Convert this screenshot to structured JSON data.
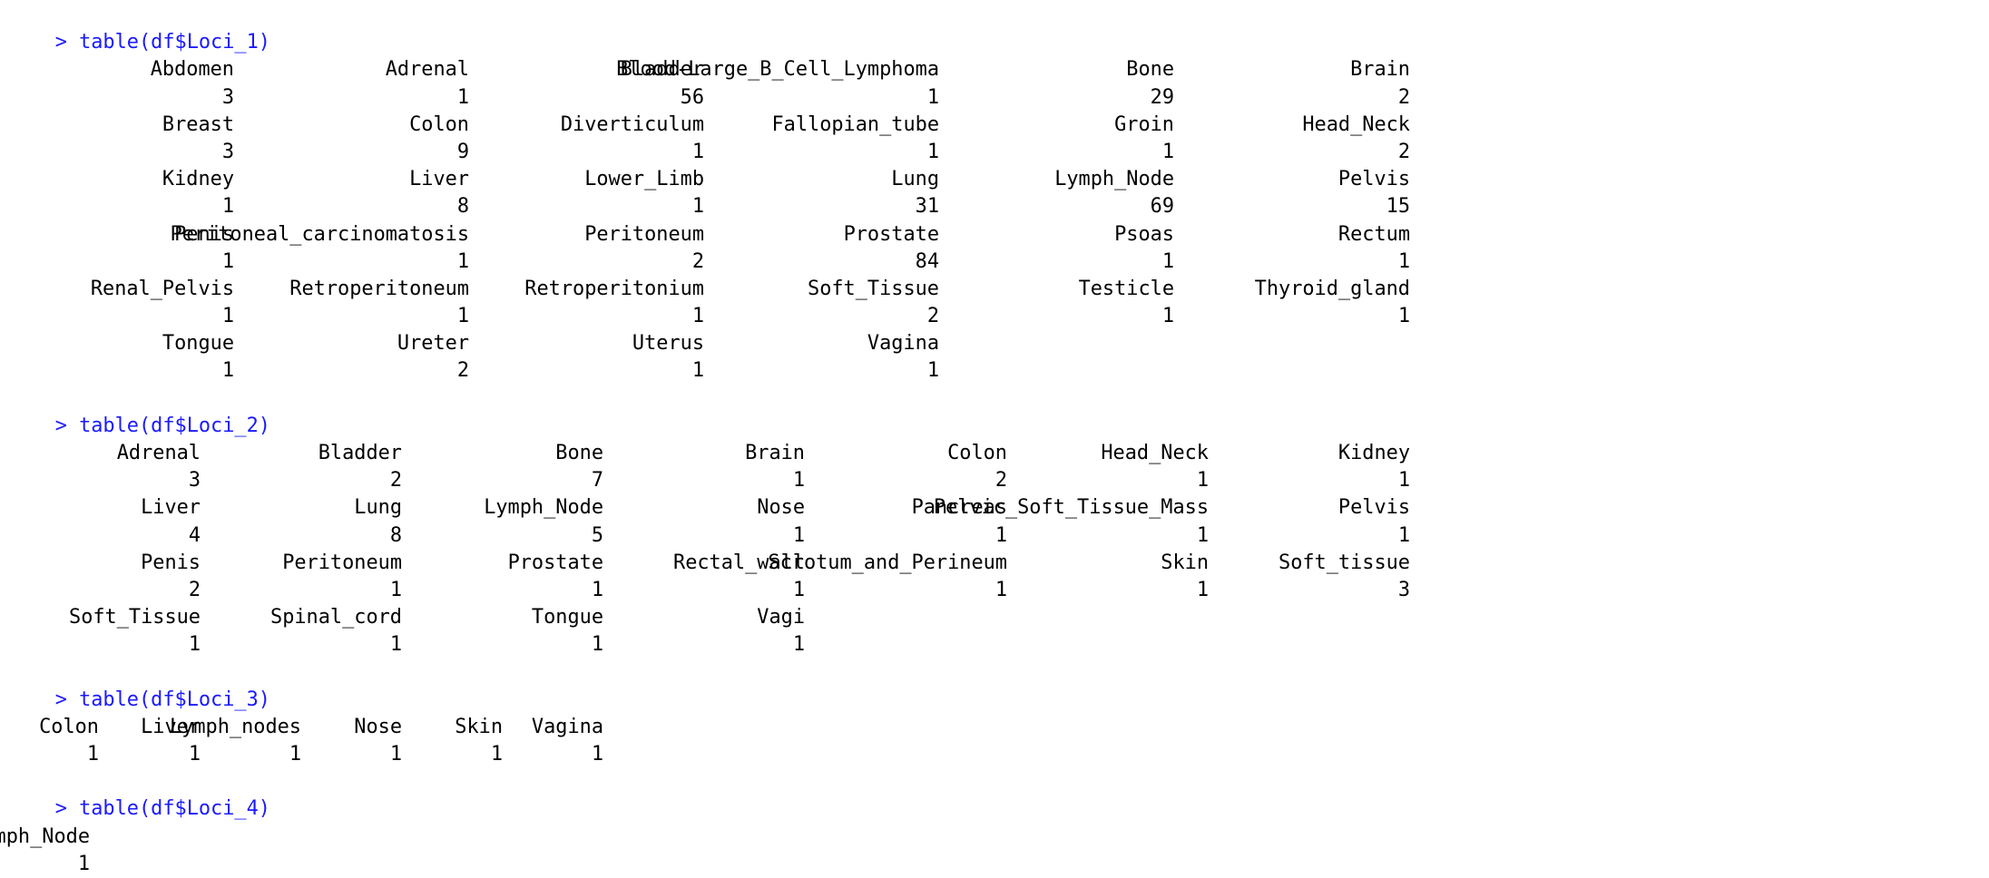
{
  "console": {
    "blocks": [
      {
        "prompt": "> ",
        "command": "table(df$Loci_1)",
        "rows": [
          {
            "names": [
              "Abdomen",
              "Adrenal",
              "Bladder",
              "Blood-Large_B_Cell_Lymphoma",
              "Bone",
              "Brain"
            ],
            "counts": [
              "3",
              "1",
              "56",
              "1",
              "29",
              "2"
            ]
          },
          {
            "names": [
              "Breast",
              "Colon",
              "Diverticulum",
              "Fallopian_tube",
              "Groin",
              "Head_Neck"
            ],
            "counts": [
              "3",
              "9",
              "1",
              "1",
              "1",
              "2"
            ]
          },
          {
            "names": [
              "Kidney",
              "Liver",
              "Lower_Limb",
              "Lung",
              "Lymph_Node",
              "Pelvis"
            ],
            "counts": [
              "1",
              "8",
              "1",
              "31",
              "69",
              "15"
            ]
          },
          {
            "names": [
              "Penis",
              "Peritoneal_carcinomatosis",
              "Peritoneum",
              "Prostate",
              "Psoas",
              "Rectum"
            ],
            "counts": [
              "1",
              "1",
              "2",
              "84",
              "1",
              "1"
            ]
          },
          {
            "names": [
              "Renal_Pelvis",
              "Retroperitoneum",
              "Retroperitonium",
              "Soft_Tissue",
              "Testicle",
              "Thyroid_gland"
            ],
            "counts": [
              "1",
              "1",
              "1",
              "2",
              "1",
              "1"
            ]
          },
          {
            "names": [
              "Tongue",
              "Ureter",
              "Uterus",
              "Vagina"
            ],
            "counts": [
              "1",
              "2",
              "1",
              "1"
            ]
          }
        ]
      },
      {
        "prompt": "> ",
        "command": "table(df$Loci_2)",
        "rows": [
          {
            "names": [
              "Adrenal",
              "Bladder",
              "Bone",
              "Brain",
              "Colon",
              "Head_Neck",
              "Kidney"
            ],
            "counts": [
              "3",
              "2",
              "7",
              "1",
              "2",
              "1",
              "1"
            ]
          },
          {
            "names": [
              "Liver",
              "Lung",
              "Lymph_Node",
              "Nose",
              "Pancreas",
              "Pelvic_Soft_Tissue_Mass",
              "Pelvis"
            ],
            "counts": [
              "4",
              "8",
              "5",
              "1",
              "1",
              "1",
              "1"
            ]
          },
          {
            "names": [
              "Penis",
              "Peritoneum",
              "Prostate",
              "Rectal_wall",
              "Scrotum_and_Perineum",
              "Skin",
              "Soft_tissue"
            ],
            "counts": [
              "2",
              "1",
              "1",
              "1",
              "1",
              "1",
              "3"
            ]
          },
          {
            "names": [
              "Soft_Tissue",
              "Spinal_cord",
              "Tongue",
              "Vagi"
            ],
            "counts": [
              "1",
              "1",
              "1",
              "1"
            ]
          }
        ]
      },
      {
        "prompt": "> ",
        "command": "table(df$Loci_3)",
        "rows": [
          {
            "names": [
              "Colon",
              "Liver",
              "Lymph_nodes",
              "Nose",
              "Skin",
              "Vagina"
            ],
            "counts": [
              "1",
              "1",
              "1",
              "1",
              "1",
              "1"
            ]
          }
        ]
      },
      {
        "prompt": "> ",
        "command": "table(df$Loci_4)",
        "rows": [
          {
            "names": [
              "Lymph_Node"
            ],
            "counts": [
              "1"
            ]
          }
        ]
      }
    ]
  },
  "colors": {
    "command": "#1a1aff",
    "output": "#000000",
    "background": "#ffffff"
  }
}
